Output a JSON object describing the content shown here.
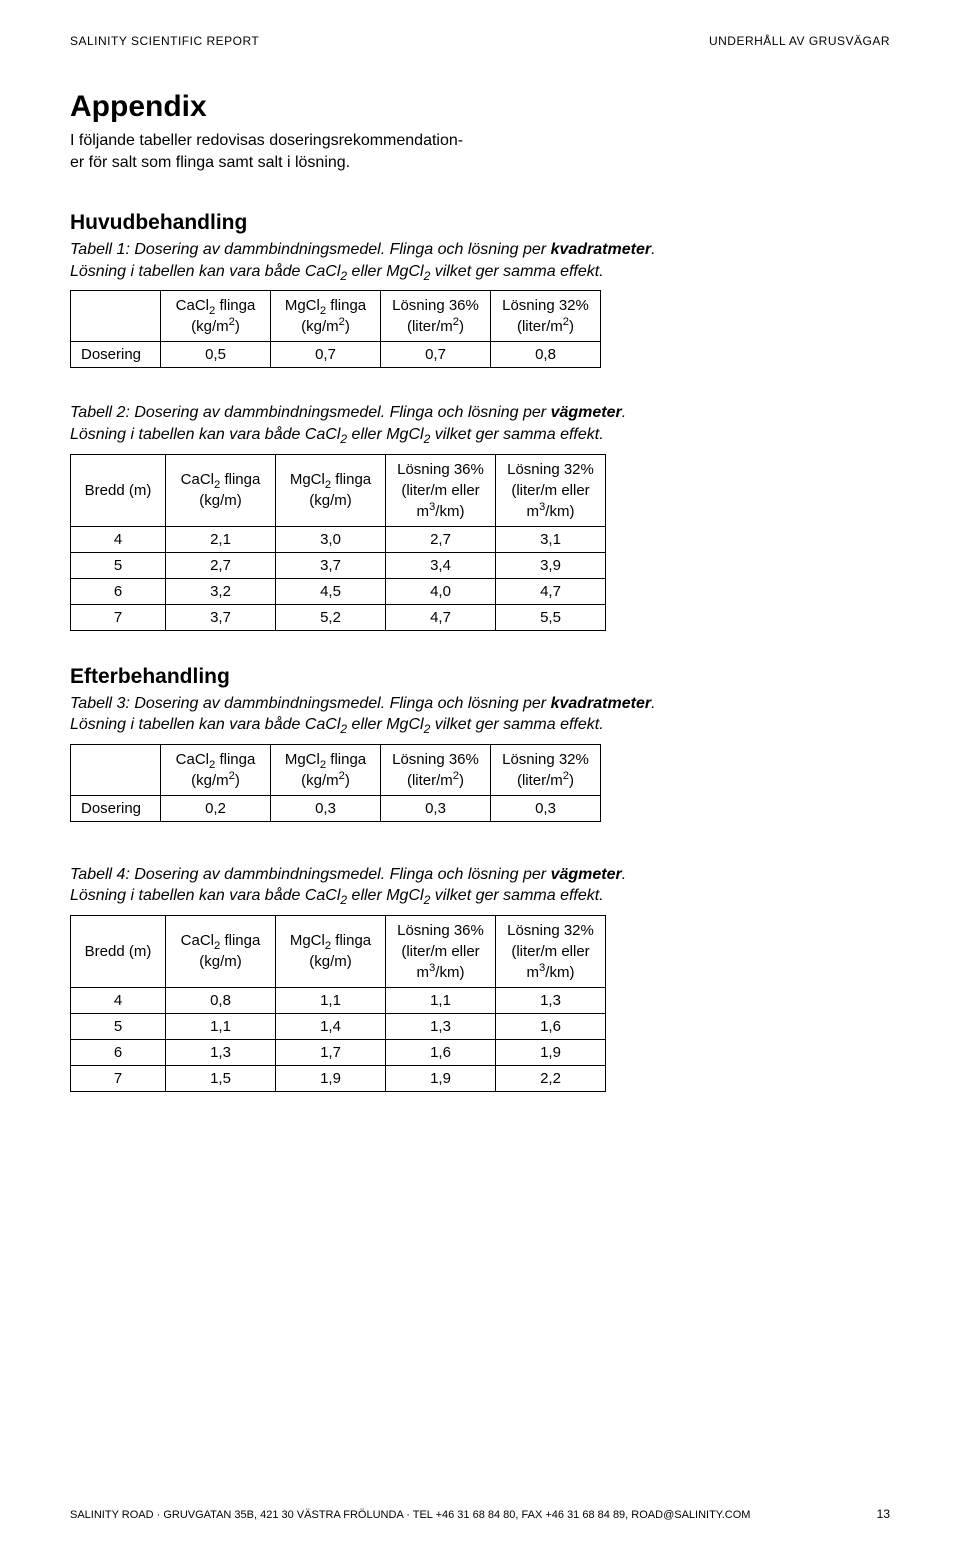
{
  "header": {
    "left": "SALINITY SCIENTIFIC REPORT",
    "right": "UNDERHÅLL AV GRUSVÄGAR"
  },
  "title": "Appendix",
  "intro_lines": [
    "I följande tabeller redovisas doseringsrekommendation-",
    "er för salt som flinga samt salt i lösning."
  ],
  "section1": "Huvudbehandling",
  "section2": "Efterbehandling",
  "caption_t1_a": "Tabell 1: Dosering av dammbindningsmedel. Flinga och lösning per ",
  "caption_t1_b": "kvadratmeter",
  "caption_t1_c": ".",
  "caption_common_note": "Lösning i tabellen kan vara både CaCl",
  "caption_common_mid": " eller MgCl",
  "caption_common_end": " vilket ger samma effekt.",
  "caption_t2_a": "Tabell 2: Dosering av dammbindningsmedel. Flinga och lösning per ",
  "caption_t2_b": "vägmeter",
  "caption_t2_c": ".",
  "caption_t3_a": "Tabell 3: Dosering av dammbindningsmedel. Flinga och lösning per ",
  "caption_t3_b": "kvadratmeter",
  "caption_t3_c": ".",
  "caption_t4_a": "Tabell 4: Dosering av dammbindningsmedel. Flinga och lösning per ",
  "caption_t4_b": "vägmeter",
  "caption_t4_c": ".",
  "labels": {
    "cacl_flinga": "CaCl",
    "mgcl_flinga": "MgCl",
    "flinga_suffix": " flinga",
    "losning36": "Lösning 36%",
    "losning32": "Lösning 32%",
    "kgm2": "(kg/m",
    "kgm2_close": ")",
    "literm2": "(liter/m",
    "literm2_close": ")",
    "dosering": "Dosering",
    "bredd": "Bredd (m)",
    "kgm": "(kg/m)",
    "literm_eller_a": "(liter/m eller",
    "literm_eller_b": "m",
    "literm_eller_c": "/km)"
  },
  "table1": {
    "row": [
      "0,5",
      "0,7",
      "0,7",
      "0,8"
    ]
  },
  "table2": {
    "rows": [
      [
        "4",
        "2,1",
        "3,0",
        "2,7",
        "3,1"
      ],
      [
        "5",
        "2,7",
        "3,7",
        "3,4",
        "3,9"
      ],
      [
        "6",
        "3,2",
        "4,5",
        "4,0",
        "4,7"
      ],
      [
        "7",
        "3,7",
        "5,2",
        "4,7",
        "5,5"
      ]
    ]
  },
  "table3": {
    "row": [
      "0,2",
      "0,3",
      "0,3",
      "0,3"
    ]
  },
  "table4": {
    "rows": [
      [
        "4",
        "0,8",
        "1,1",
        "1,1",
        "1,3"
      ],
      [
        "5",
        "1,1",
        "1,4",
        "1,3",
        "1,6"
      ],
      [
        "6",
        "1,3",
        "1,7",
        "1,6",
        "1,9"
      ],
      [
        "7",
        "1,5",
        "1,9",
        "1,9",
        "2,2"
      ]
    ]
  },
  "footer": {
    "company": "SALINITY ROAD",
    "sep": " · ",
    "address": "GRUVGATAN 35B, 421 30 VÄSTRA FRÖLUNDA",
    "tel": "TEL +46 31 68 84 80, FAX +46 31 68 84 89, ROAD@SALINITY.COM",
    "page": "13"
  }
}
